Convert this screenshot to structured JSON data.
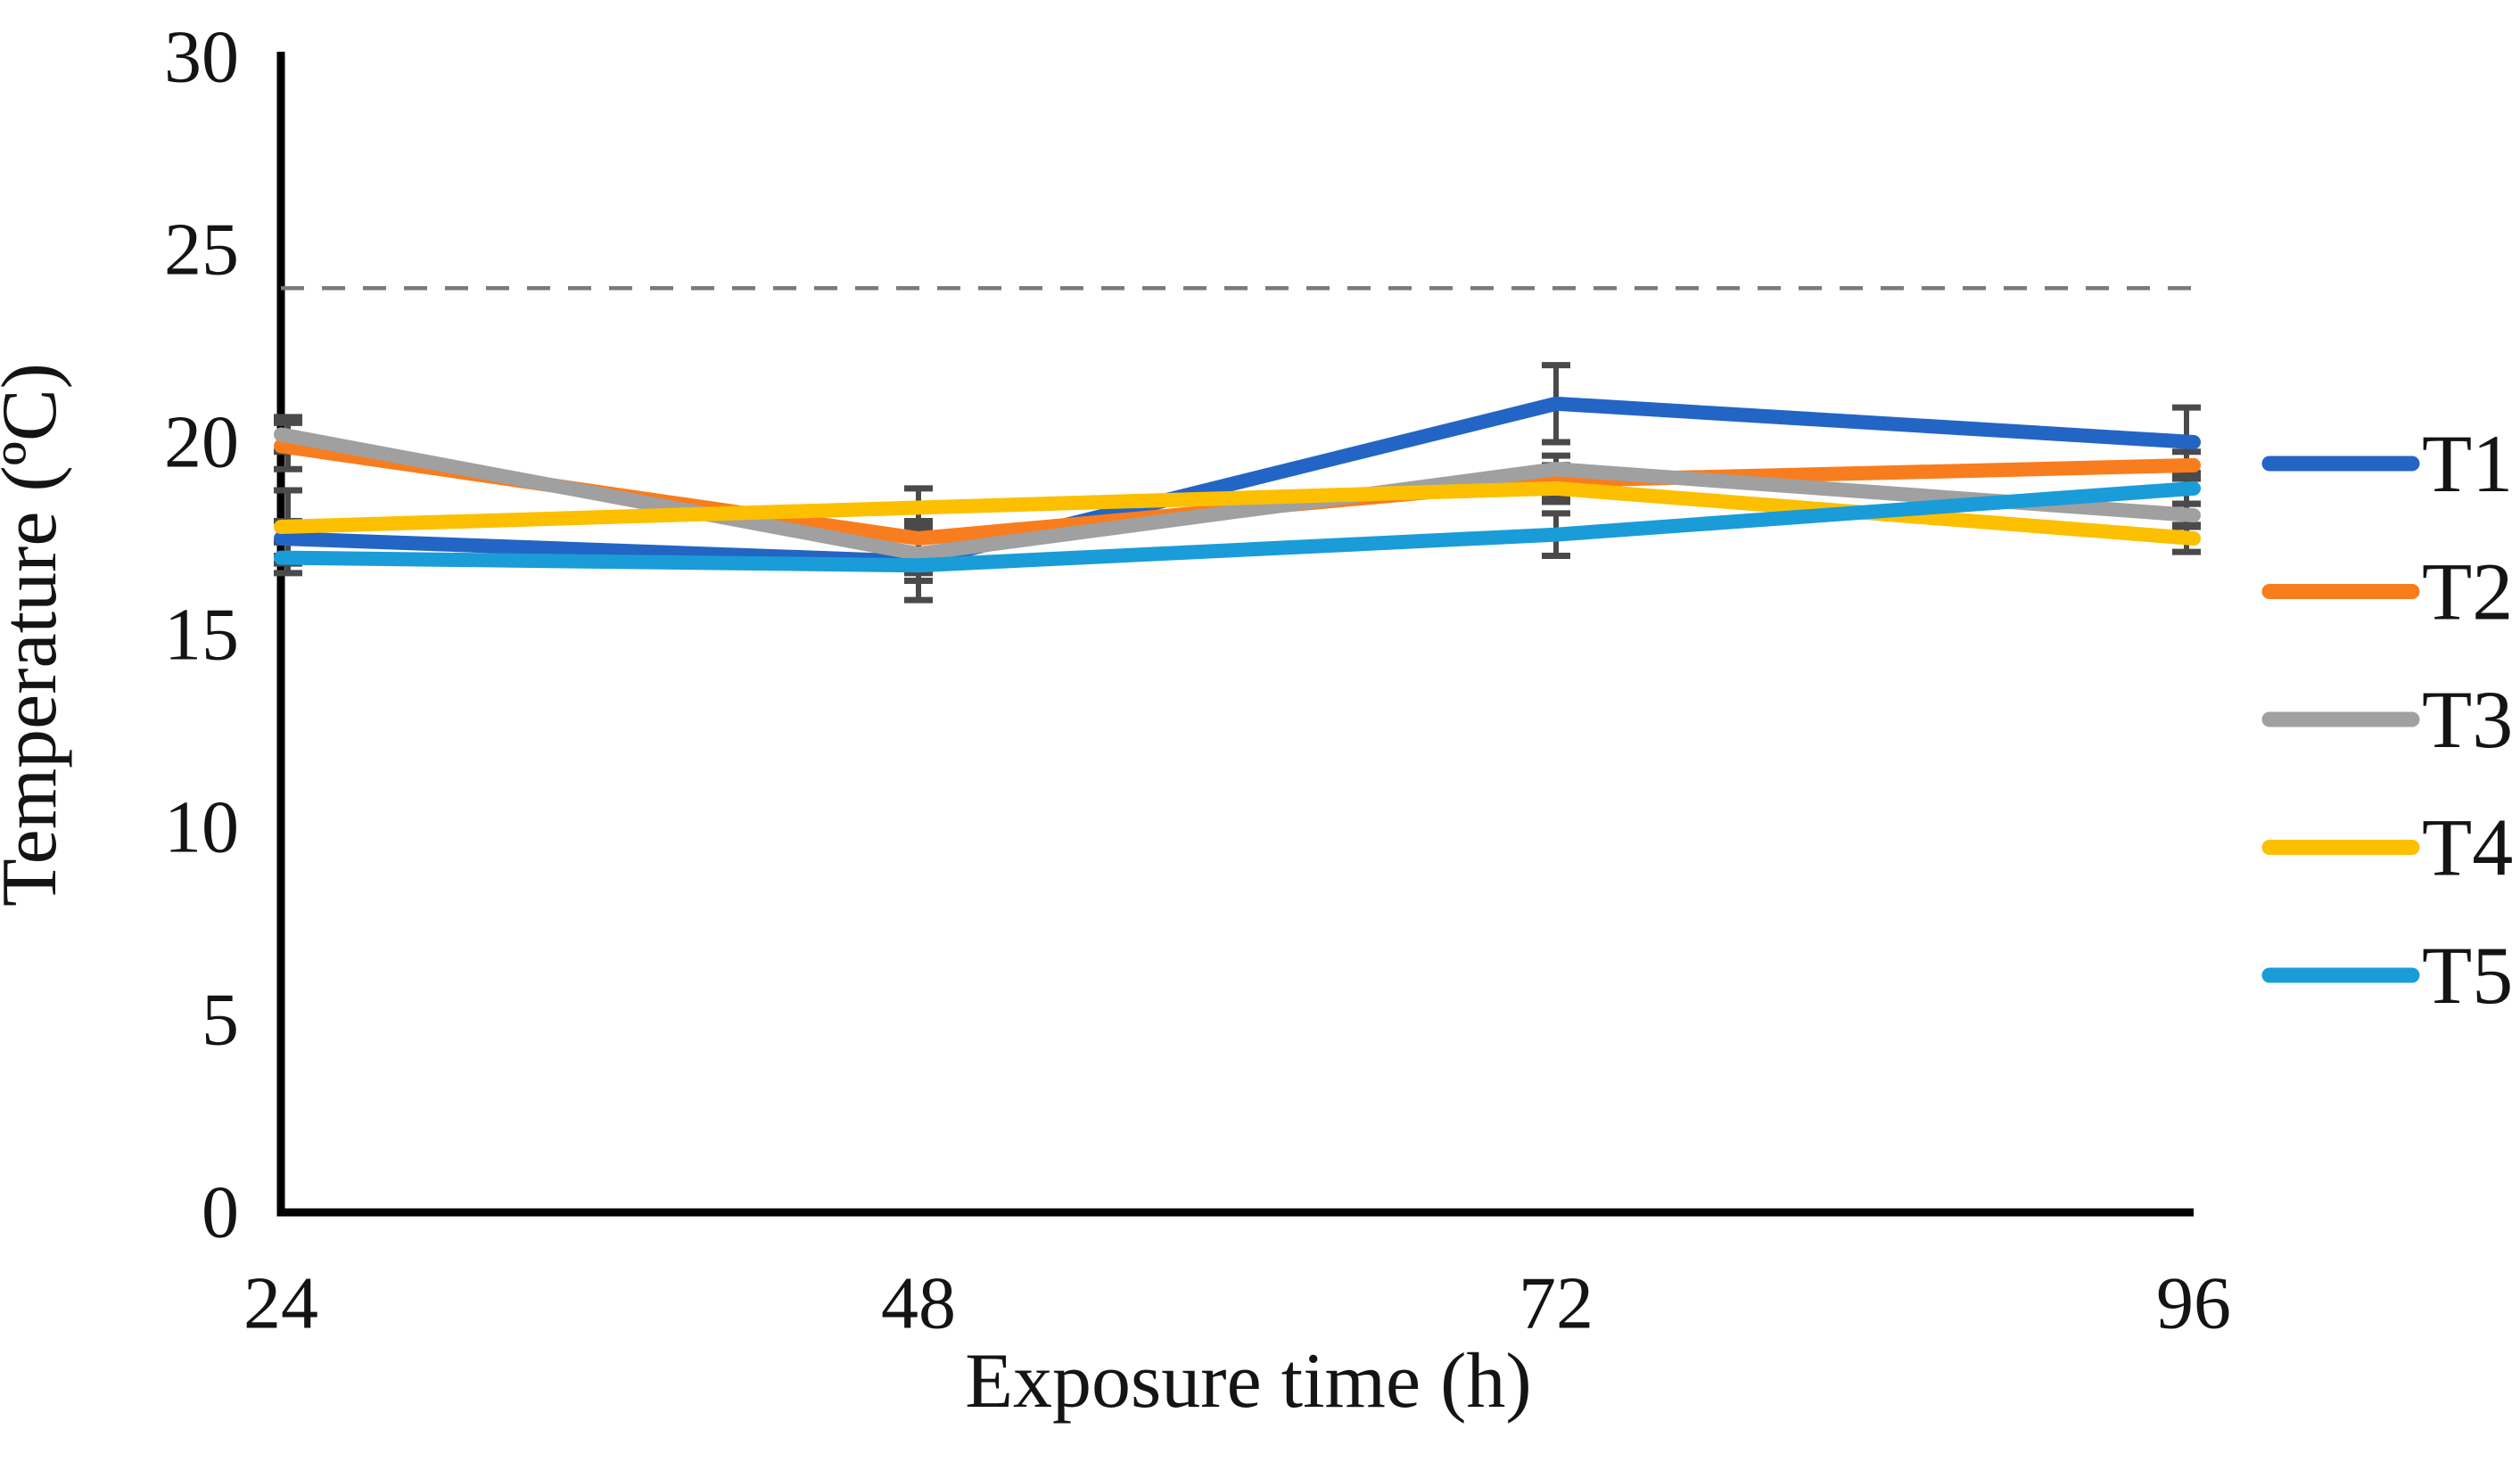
{
  "figure": {
    "background": "#ffffff"
  },
  "chart_data": {
    "type": "line",
    "x": [
      24,
      48,
      72,
      96
    ],
    "xlabel": "Exposure time (h)",
    "ylabel": "Temperature (ºC)",
    "ylim": [
      0,
      30
    ],
    "yticks": [
      0,
      5,
      10,
      15,
      20,
      25,
      30
    ],
    "grid": false,
    "legend_position": "right",
    "axis_color": "#000000",
    "error_bar_color": "#4a4a4a",
    "reference_line": {
      "value": 24,
      "style": "dashed",
      "color": "#7a7a7a"
    },
    "series": [
      {
        "name": "T1",
        "color": "#2365c4",
        "values": [
          17.5,
          16.9,
          21.0,
          20.0
        ],
        "errors": [
          0.45,
          0.3,
          1.0,
          0.9
        ]
      },
      {
        "name": "T2",
        "color": "#f87d1e",
        "values": [
          19.9,
          17.5,
          19.0,
          19.4
        ],
        "errors": [
          0.6,
          0.45,
          0.4,
          0.35
        ]
      },
      {
        "name": "T3",
        "color": "#a0a0a0",
        "values": [
          20.2,
          17.1,
          19.3,
          18.1
        ],
        "errors": [
          0.45,
          0.7,
          0.35,
          0.3
        ]
      },
      {
        "name": "T4",
        "color": "#fcc000",
        "values": [
          17.8,
          18.3,
          18.8,
          17.5
        ],
        "errors": [
          0.95,
          0.5,
          0.35,
          0.35
        ]
      },
      {
        "name": "T5",
        "color": "#1a9cd8",
        "values": [
          17.0,
          16.8,
          17.6,
          18.8
        ],
        "errors": [
          0.4,
          0.9,
          0.55,
          0.4
        ]
      }
    ]
  }
}
